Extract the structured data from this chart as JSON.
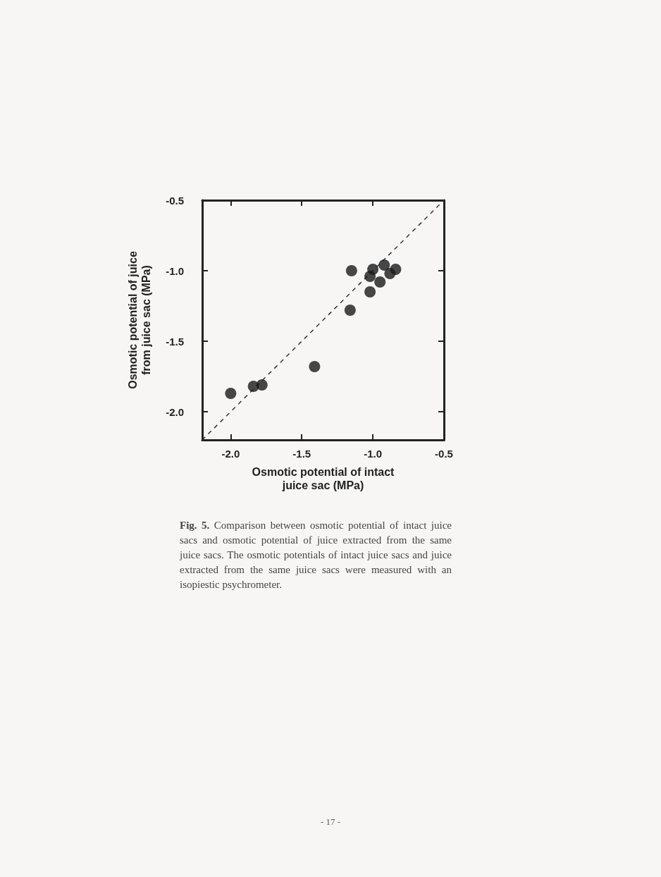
{
  "chart_data": {
    "type": "scatter",
    "xlabel": "Osmotic potential of intact\njuice sac (MPa)",
    "ylabel": "Osmotic potential of juice\nfrom juice sac (MPa)",
    "xlim": [
      -2.2,
      -0.5
    ],
    "ylim": [
      -2.2,
      -0.5
    ],
    "xticks": [
      {
        "value": -2.0,
        "label": "-2.0"
      },
      {
        "value": -1.5,
        "label": "-1.5"
      },
      {
        "value": -1.0,
        "label": "-1.0"
      },
      {
        "value": -0.5,
        "label": "-0.5"
      }
    ],
    "yticks": [
      {
        "value": -2.0,
        "label": "-2.0"
      },
      {
        "value": -1.5,
        "label": "-1.5"
      },
      {
        "value": -1.0,
        "label": "-1.0"
      },
      {
        "value": -0.5,
        "label": "-0.5"
      }
    ],
    "grid": false,
    "marker": "circle",
    "series": [
      {
        "color": "#1a1a1a",
        "x": [
          -2.0,
          -1.84,
          -1.78,
          -1.41,
          -1.16,
          -1.15,
          -1.02,
          -1.0,
          -1.02,
          -0.95,
          -0.92,
          -0.88,
          -0.84
        ],
        "values": [
          -1.87,
          -1.82,
          -1.81,
          -1.68,
          -1.28,
          -1.0,
          -1.04,
          -0.99,
          -1.15,
          -1.08,
          -0.96,
          -1.02,
          -0.99
        ]
      },
      {
        "type": "line",
        "color": "#333333",
        "line_style": "dashed",
        "marker": "none",
        "x": [
          -2.2,
          -0.5
        ],
        "values": [
          -2.2,
          -0.5
        ]
      }
    ],
    "annotations": [
      "Fig. 5. Comparison between osmotic potential of intact juice sacs and osmotic potential of juice extracted from the same juice sacs. The osmotic potentials of intact juice sacs and juice extracted from the same juice sacs were measured with an isopiestic psychrometer.",
      "- 17 -"
    ]
  }
}
